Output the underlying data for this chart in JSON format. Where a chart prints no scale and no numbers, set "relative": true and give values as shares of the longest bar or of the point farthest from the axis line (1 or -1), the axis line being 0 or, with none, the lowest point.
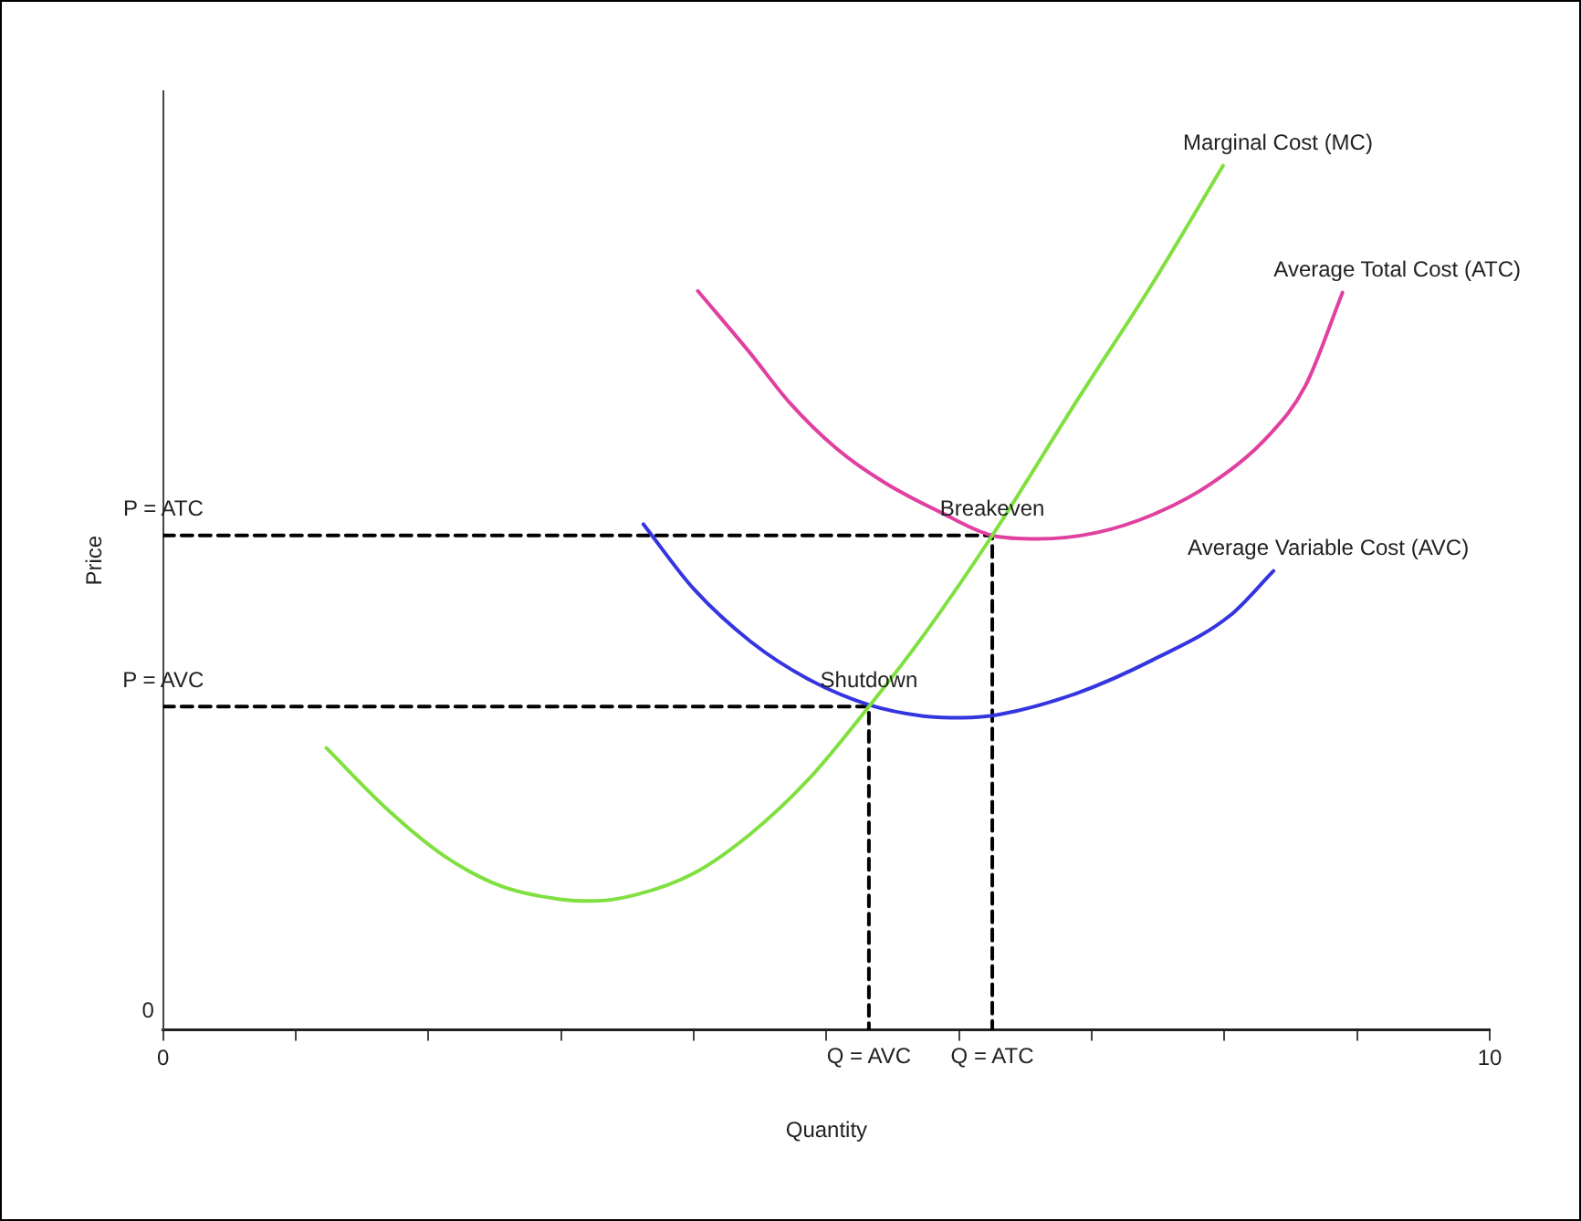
{
  "chart_data": {
    "type": "line",
    "relative": true,
    "xlabel": "Quantity",
    "ylabel": "Price",
    "xlim": [
      0,
      10
    ],
    "xticks": [
      0,
      {
        "value": 1,
        "label": null
      },
      {
        "value": 2,
        "label": null
      },
      {
        "value": 3,
        "label": null
      },
      {
        "value": 4,
        "label": null
      },
      {
        "value": 5,
        "label": null
      },
      {
        "value": 6,
        "label": null
      },
      {
        "value": 7,
        "label": null
      },
      {
        "value": 8,
        "label": null
      },
      {
        "value": 9,
        "label": null
      },
      10
    ],
    "marker": "none",
    "legend": false,
    "grid": false,
    "series": [
      {
        "name": "Marginal Cost (MC)",
        "color": "#80e040",
        "x": [
          1.23,
          1.69,
          2.12,
          2.55,
          2.99,
          3.25,
          3.56,
          4.0,
          4.43,
          4.86,
          5.32,
          5.73,
          6.25,
          6.88,
          7.46,
          7.99
        ],
        "values": [
          0.326,
          0.255,
          0.201,
          0.166,
          0.151,
          0.149,
          0.156,
          0.181,
          0.227,
          0.289,
          0.374,
          0.456,
          0.572,
          0.726,
          0.864,
          1
        ]
      },
      {
        "name": "Average Total Cost (ATC)",
        "color": "#e040a0",
        "x": [
          4.03,
          4.43,
          4.72,
          5.08,
          5.44,
          5.87,
          6.25,
          6.59,
          7.03,
          7.46,
          7.89,
          8.33,
          8.61,
          8.89
        ],
        "values": [
          0.855,
          0.782,
          0.726,
          0.672,
          0.633,
          0.598,
          0.572,
          0.568,
          0.575,
          0.596,
          0.631,
          0.687,
          0.745,
          0.853
        ]
      },
      {
        "name": "Average Variable Cost (AVC)",
        "color": "#3535e0",
        "x": [
          3.62,
          4.0,
          4.43,
          4.86,
          5.32,
          5.73,
          6.02,
          6.31,
          6.88,
          7.46,
          8.04,
          8.37
        ],
        "values": [
          0.585,
          0.51,
          0.449,
          0.406,
          0.376,
          0.363,
          0.361,
          0.365,
          0.389,
          0.428,
          0.479,
          0.531
        ]
      },
      {
        "color": "#000000",
        "line_style": "dashed",
        "x": [
          0,
          6.25,
          6.25
        ],
        "values": [
          0.572,
          0.572,
          0
        ]
      },
      {
        "color": "#000000",
        "line_style": "dashed",
        "x": [
          0,
          5.32,
          5.32
        ],
        "values": [
          0.374,
          0.374,
          0
        ]
      }
    ],
    "annotations": [
      {
        "text": "Breakeven",
        "x": 6.25,
        "y": 0.572
      },
      {
        "text": "Shutdown",
        "x": 5.32,
        "y": 0.374
      },
      {
        "text": "P = ATC",
        "x": 0,
        "y": 0.572
      },
      {
        "text": "P = AVC",
        "x": 0,
        "y": 0.374
      },
      {
        "text": "Q = AVC",
        "x": 5.32,
        "y": 0
      },
      {
        "text": "Q = ATC",
        "x": 6.25,
        "y": 0
      },
      "0"
    ]
  }
}
